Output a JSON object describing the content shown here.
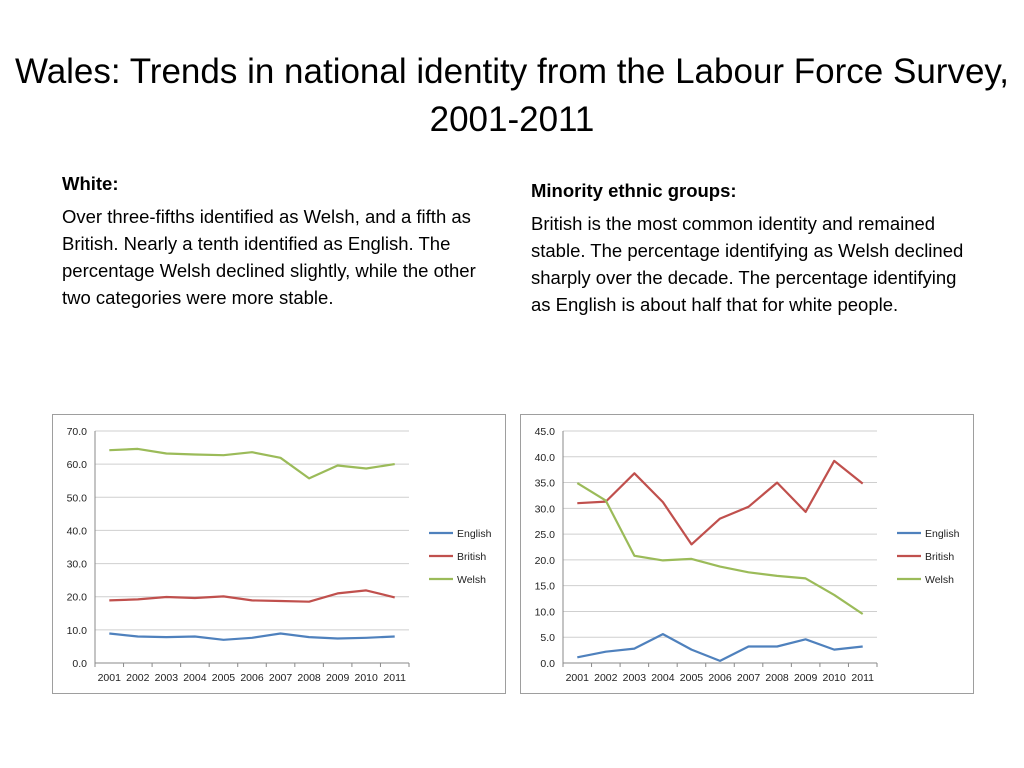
{
  "title": "Wales: Trends in national identity from the Labour Force Survey, 2001-2011",
  "left": {
    "heading": "White:",
    "body": "Over three-fifths identified as Welsh, and a fifth as British. Nearly a tenth identified as English. The percentage Welsh declined slightly, while the other two categories were more stable."
  },
  "right": {
    "heading": "Minority ethnic groups:",
    "body": "British is the most common identity and remained stable. The percentage identifying as Welsh declined sharply over the decade. The percentage identifying as English is about half that for white people."
  },
  "chart_data": [
    {
      "type": "line",
      "x": [
        "2001",
        "2002",
        "2003",
        "2004",
        "2005",
        "2006",
        "2007",
        "2008",
        "2009",
        "2010",
        "2011"
      ],
      "ylim": [
        0,
        70
      ],
      "yticks": [
        "0.0",
        "10.0",
        "20.0",
        "30.0",
        "40.0",
        "50.0",
        "60.0",
        "70.0"
      ],
      "grid": true,
      "legend": "right",
      "series": [
        {
          "name": "English",
          "color": "#4f81bd",
          "values": [
            8.9,
            8.0,
            7.8,
            8.0,
            7.0,
            7.6,
            8.9,
            7.8,
            7.4,
            7.6,
            8.0
          ]
        },
        {
          "name": "British",
          "color": "#c0504d",
          "values": [
            18.9,
            19.2,
            19.9,
            19.6,
            20.1,
            18.9,
            18.7,
            18.5,
            21.0,
            21.9,
            19.8
          ]
        },
        {
          "name": "Welsh",
          "color": "#9bbb59",
          "values": [
            64.2,
            64.6,
            63.2,
            62.9,
            62.7,
            63.6,
            61.9,
            55.7,
            59.6,
            58.7,
            60.0
          ]
        }
      ]
    },
    {
      "type": "line",
      "x": [
        "2001",
        "2002",
        "2003",
        "2004",
        "2005",
        "2006",
        "2007",
        "2008",
        "2009",
        "2010",
        "2011"
      ],
      "ylim": [
        0,
        45
      ],
      "yticks": [
        "0.0",
        "5.0",
        "10.0",
        "15.0",
        "20.0",
        "25.0",
        "30.0",
        "35.0",
        "40.0",
        "45.0"
      ],
      "grid": true,
      "legend": "right",
      "series": [
        {
          "name": "English",
          "color": "#4f81bd",
          "values": [
            1.1,
            2.2,
            2.8,
            5.6,
            2.6,
            0.4,
            3.2,
            3.2,
            4.6,
            2.6,
            3.2
          ]
        },
        {
          "name": "British",
          "color": "#c0504d",
          "values": [
            31.0,
            31.3,
            36.8,
            31.2,
            23.0,
            28.0,
            30.3,
            35.0,
            29.3,
            39.2,
            34.8
          ]
        },
        {
          "name": "Welsh",
          "color": "#9bbb59",
          "values": [
            34.9,
            31.5,
            20.8,
            19.9,
            20.2,
            18.7,
            17.6,
            16.9,
            16.4,
            13.2,
            9.5
          ]
        }
      ]
    }
  ]
}
